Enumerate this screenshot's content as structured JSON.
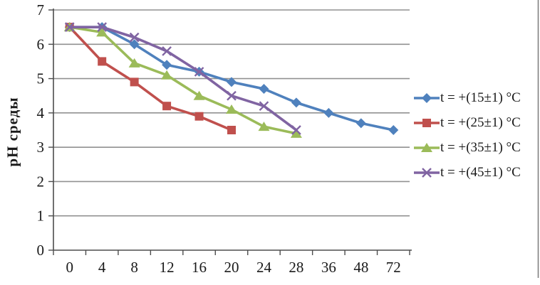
{
  "chart_data": {
    "type": "line",
    "title": "",
    "xlabel": "",
    "ylabel": "pH среды",
    "categories": [
      0,
      4,
      8,
      12,
      16,
      20,
      24,
      28,
      36,
      48,
      72
    ],
    "y_axis": {
      "min": 0,
      "max": 7,
      "step": 1,
      "tick_labels": [
        "0",
        "1",
        "2",
        "3",
        "4",
        "5",
        "6",
        "7"
      ]
    },
    "grid": "horizontal",
    "legend_position": "right",
    "series": [
      {
        "name": "t = +(15±1) °C",
        "color": "#4F81BD",
        "marker": "diamond",
        "values": [
          6.5,
          6.5,
          6.0,
          5.4,
          5.2,
          4.9,
          4.7,
          4.3,
          4.0,
          3.7,
          3.5
        ]
      },
      {
        "name": "t = +(25±1) °C",
        "color": "#C0504D",
        "marker": "square",
        "values": [
          6.5,
          5.5,
          4.9,
          4.2,
          3.9,
          3.5,
          null,
          null,
          null,
          null,
          null
        ]
      },
      {
        "name": "t = +(35±1) °C",
        "color": "#9BBB59",
        "marker": "triangle",
        "values": [
          6.5,
          6.35,
          5.45,
          5.1,
          4.5,
          4.1,
          3.6,
          3.4,
          null,
          null,
          null
        ]
      },
      {
        "name": "t = +(45±1) °C",
        "color": "#8064A2",
        "marker": "x",
        "values": [
          6.5,
          6.5,
          6.2,
          5.8,
          5.2,
          4.5,
          4.2,
          3.5,
          null,
          null,
          null
        ]
      }
    ],
    "colors": {
      "gridline": "#919191",
      "axis": "#4d4d4d",
      "text": "#1a1a1a",
      "frame_border": "#808080",
      "background": "#ffffff"
    }
  }
}
